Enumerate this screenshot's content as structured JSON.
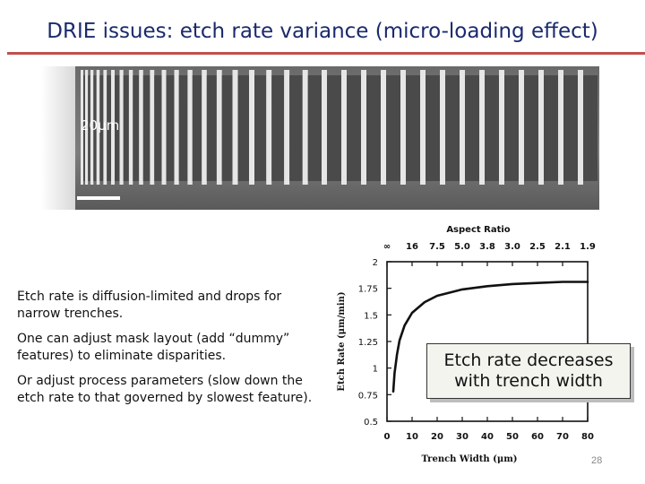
{
  "slide": {
    "title": "DRIE issues: etch rate variance (micro-loading effect)",
    "scale_bar_label": "20μm",
    "bullets": [
      "Etch rate is diffusion-limited and drops for narrow trenches.",
      "One can adjust mask layout (add “dummy” features) to eliminate disparities.",
      "Or adjust process parameters (slow down the etch rate to that governed by slowest feature)."
    ],
    "callout": [
      "Etch rate decreases",
      "with trench width"
    ],
    "page_number": "28"
  },
  "chart_data": {
    "type": "line",
    "title": "",
    "top_axis_label": "Aspect Ratio",
    "top_ticks": [
      "∞",
      "16",
      "7.5",
      "5.0",
      "3.8",
      "3.0",
      "2.5",
      "2.1",
      "1.9"
    ],
    "xlabel": "Trench Width (μm)",
    "ylabel": "Etch Rate (μm/min)",
    "xlim": [
      0,
      80
    ],
    "ylim": [
      0.5,
      2
    ],
    "x_ticks": [
      0,
      10,
      20,
      30,
      40,
      50,
      60,
      70,
      80
    ],
    "y_ticks": [
      "0.5",
      "0.75",
      "1",
      "1.25",
      "1.5",
      "1.75",
      "2"
    ],
    "series": [
      {
        "x": [
          2.5,
          3,
          4,
          5,
          7,
          10,
          15,
          20,
          30,
          40,
          50,
          60,
          70,
          80
        ],
        "y": [
          0.78,
          0.95,
          1.13,
          1.26,
          1.4,
          1.52,
          1.62,
          1.68,
          1.74,
          1.77,
          1.79,
          1.8,
          1.81,
          1.81
        ]
      }
    ]
  }
}
